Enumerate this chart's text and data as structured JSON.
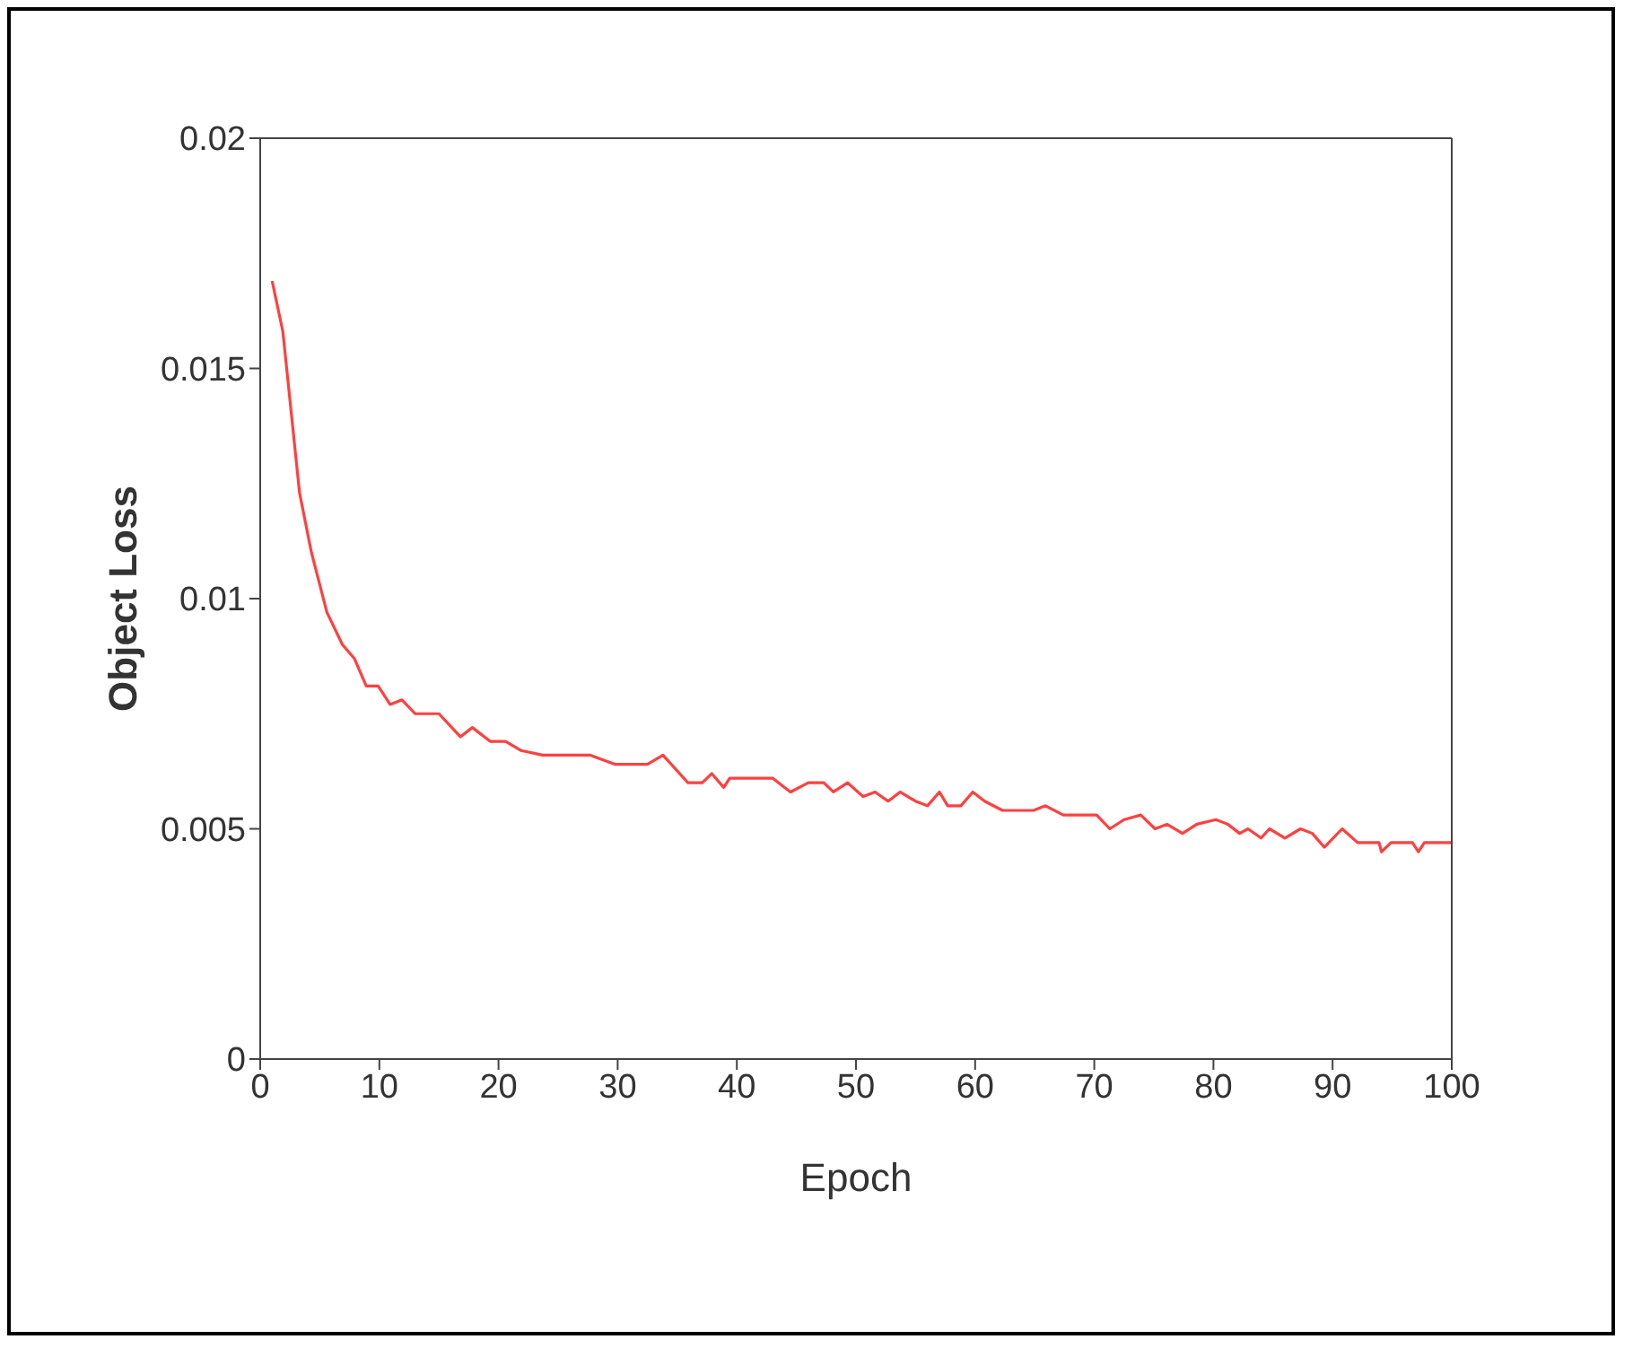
{
  "chart_data": {
    "type": "line",
    "xlabel": "Epoch",
    "ylabel": "Object Loss",
    "x": [
      1,
      1.9,
      2.5,
      3.3,
      4.3,
      5.6,
      6.9,
      7.9,
      8.9,
      9.9,
      10.9,
      11.9,
      13,
      15,
      16.8,
      17.8,
      19.3,
      20.6,
      21.9,
      23.7,
      27.7,
      29.8,
      32.5,
      33.8,
      35.9,
      37.1,
      37.9,
      38.9,
      39.4,
      43,
      44.5,
      46,
      47.3,
      48.1,
      49.3,
      50.6,
      51.6,
      52.7,
      53.7,
      55,
      56,
      57,
      57.7,
      58.8,
      59.8,
      60.8,
      62.3,
      64.9,
      65.9,
      67.4,
      70.2,
      71.3,
      72.5,
      73.9,
      75.1,
      76.1,
      77.4,
      78.6,
      80.2,
      81.2,
      82.2,
      82.9,
      84,
      84.7,
      86,
      87.3,
      88.3,
      89.3,
      90.8,
      92.1,
      93.9,
      94.1,
      94.9,
      96.7,
      97.2,
      97.7,
      100
    ],
    "series": [
      {
        "color": "#ff4040",
        "values": [
          0.0169,
          0.0158,
          0.0143,
          0.0123,
          0.011,
          0.0097,
          0.009,
          0.0087,
          0.0081,
          0.0081,
          0.0077,
          0.0078,
          0.0075,
          0.0075,
          0.007,
          0.0072,
          0.0069,
          0.0069,
          0.0067,
          0.0066,
          0.0066,
          0.0064,
          0.0064,
          0.0066,
          0.006,
          0.006,
          0.0062,
          0.0059,
          0.0061,
          0.0061,
          0.0058,
          0.006,
          0.006,
          0.0058,
          0.006,
          0.0057,
          0.0058,
          0.0056,
          0.0058,
          0.0056,
          0.0055,
          0.0058,
          0.0055,
          0.0055,
          0.0058,
          0.0056,
          0.0054,
          0.0054,
          0.0055,
          0.0053,
          0.0053,
          0.005,
          0.0052,
          0.0053,
          0.005,
          0.0051,
          0.0049,
          0.0051,
          0.0052,
          0.0051,
          0.0049,
          0.005,
          0.0048,
          0.005,
          0.0048,
          0.005,
          0.0049,
          0.0046,
          0.005,
          0.0047,
          0.0047,
          0.0045,
          0.0047,
          0.0047,
          0.0045,
          0.0047,
          0.0047
        ]
      }
    ],
    "xlim": [
      0,
      100
    ],
    "xticks": [
      0,
      10,
      20,
      30,
      40,
      50,
      60,
      70,
      80,
      90,
      100
    ],
    "ylim": [
      0,
      0.02
    ],
    "yticks": [
      0,
      0.005,
      0.01,
      0.015,
      0.02
    ],
    "grid": false,
    "legend": false,
    "marker": "none",
    "line_style": "solid"
  }
}
